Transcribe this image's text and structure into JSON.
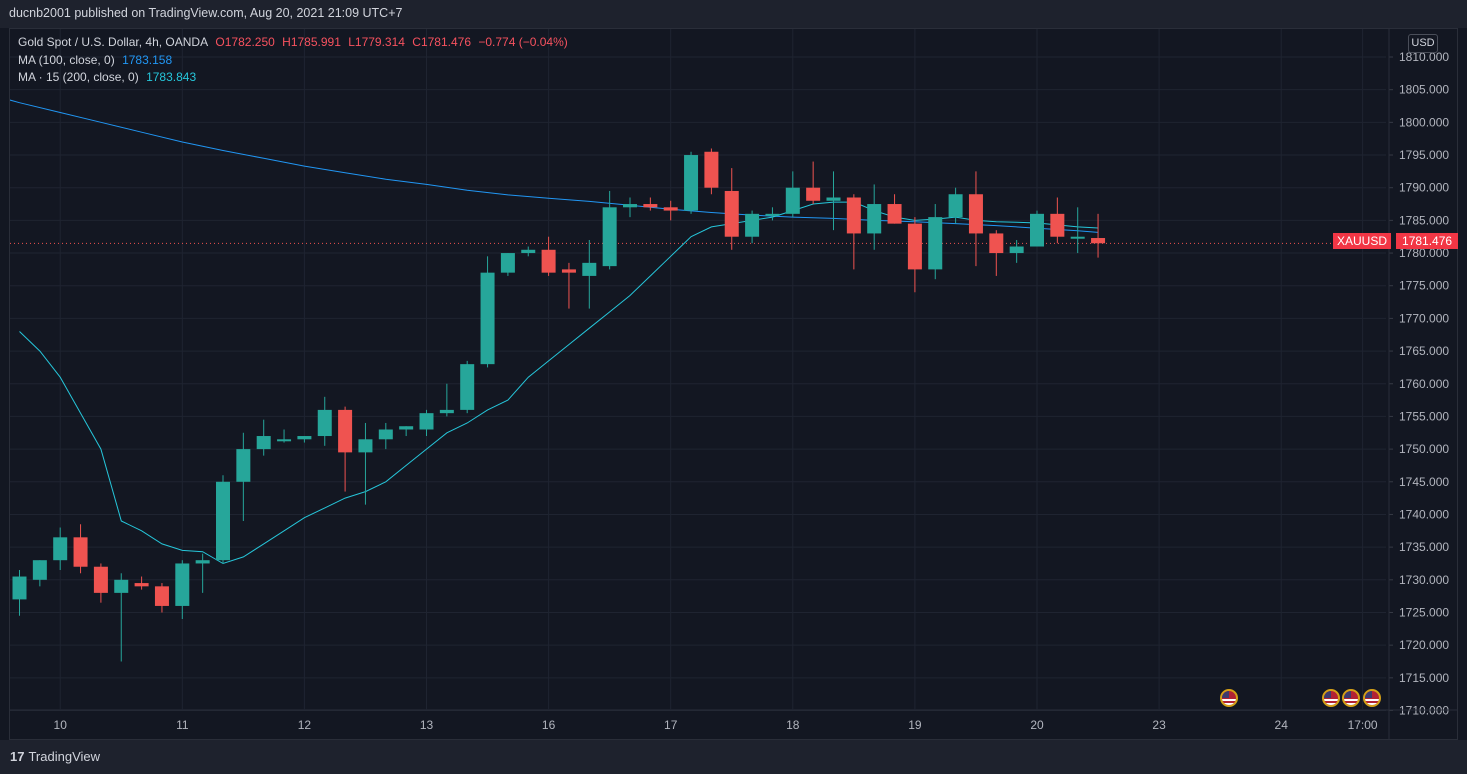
{
  "header": {
    "published": "ducnb2001 published on TradingView.com, Aug 20, 2021 21:09 UTC+7"
  },
  "legend": {
    "symbol": "Gold Spot / U.S. Dollar, 4h, OANDA",
    "open": "O1782.250",
    "high": "H1785.991",
    "low": "L1779.314",
    "close": "C1781.476",
    "change": "−0.774 (−0.04%)",
    "ma100_label": "MA (100, close, 0)",
    "ma100_value": "1783.158",
    "ma15_label": "MA · 15 (200, close, 0)",
    "ma15_value": "1783.843"
  },
  "price_scale": {
    "currency": "USD",
    "last_symbol": "XAUUSD",
    "last_value": "1781.476"
  },
  "footer": {
    "logo_text": "TradingView",
    "logo_mark": "17"
  },
  "colors": {
    "up": "#26a69a",
    "down": "#ef5350",
    "ma100": "#2196f3",
    "ma15": "#26c6da",
    "grid": "#1f2431",
    "text": "#b2b5be"
  },
  "chart_data": {
    "type": "candlestick",
    "title": "Gold Spot / U.S. Dollar, 4h, OANDA",
    "ylim": [
      1707.5,
      1814
    ],
    "yticks": [
      1710,
      1715,
      1720,
      1725,
      1730,
      1735,
      1740,
      1745,
      1750,
      1755,
      1760,
      1765,
      1770,
      1775,
      1780,
      1785,
      1790,
      1795,
      1800,
      1805,
      1810
    ],
    "ytick_labels": [
      "1710.000",
      "1715.000",
      "1720.000",
      "1725.000",
      "1730.000",
      "1735.000",
      "1740.000",
      "1745.000",
      "1750.000",
      "1755.000",
      "1760.000",
      "1765.000",
      "1770.000",
      "1775.000",
      "1780.000",
      "1785.000",
      "1790.000",
      "1795.000",
      "1800.000",
      "1805.000",
      "1810.000"
    ],
    "xticks": [
      {
        "label": "10",
        "bar": 2
      },
      {
        "label": "11",
        "bar": 8
      },
      {
        "label": "12",
        "bar": 14
      },
      {
        "label": "13",
        "bar": 20
      },
      {
        "label": "16",
        "bar": 26
      },
      {
        "label": "17",
        "bar": 32
      },
      {
        "label": "18",
        "bar": 38
      },
      {
        "label": "19",
        "bar": 44
      },
      {
        "label": "20",
        "bar": 50
      },
      {
        "label": "23",
        "bar": 56
      },
      {
        "label": "24",
        "bar": 62
      },
      {
        "label": "17:00",
        "bar": 66
      }
    ],
    "ohlc": [
      [
        1727,
        1731.5,
        1724.5,
        1730.5
      ],
      [
        1730,
        1733,
        1729,
        1733
      ],
      [
        1733,
        1738,
        1731.5,
        1736.5
      ],
      [
        1736.5,
        1738.5,
        1731,
        1732
      ],
      [
        1732,
        1732.5,
        1726.5,
        1728
      ],
      [
        1728,
        1731,
        1717.5,
        1730
      ],
      [
        1729.5,
        1730.5,
        1728.5,
        1729
      ],
      [
        1729,
        1729.5,
        1725,
        1726
      ],
      [
        1726,
        1733,
        1724,
        1732.5
      ],
      [
        1732.5,
        1734,
        1728,
        1733
      ],
      [
        1733,
        1746,
        1732.5,
        1745
      ],
      [
        1745,
        1752.5,
        1739,
        1750
      ],
      [
        1750,
        1754.5,
        1749,
        1752
      ],
      [
        1751.5,
        1753,
        1751,
        1751.5
      ],
      [
        1751.5,
        1752,
        1751,
        1752
      ],
      [
        1752,
        1758,
        1750.5,
        1756
      ],
      [
        1756,
        1756.5,
        1743.5,
        1749.5
      ],
      [
        1749.5,
        1754,
        1741.5,
        1751.5
      ],
      [
        1751.5,
        1754,
        1750,
        1753
      ],
      [
        1753,
        1753.5,
        1752,
        1753.5
      ],
      [
        1753,
        1756,
        1752,
        1755.5
      ],
      [
        1755.5,
        1760,
        1755,
        1756
      ],
      [
        1756,
        1763.5,
        1755.5,
        1763
      ],
      [
        1763,
        1779.5,
        1762.5,
        1777
      ],
      [
        1777,
        1780,
        1776.5,
        1780
      ],
      [
        1780,
        1781,
        1779.5,
        1780.5
      ],
      [
        1780.5,
        1782.5,
        1776.5,
        1777
      ],
      [
        1777.5,
        1778.5,
        1771.5,
        1777
      ],
      [
        1776.5,
        1782,
        1771.5,
        1778.5
      ],
      [
        1778,
        1789.5,
        1777.5,
        1787
      ],
      [
        1787,
        1788.5,
        1785.5,
        1787.5
      ],
      [
        1787.5,
        1788.5,
        1786.5,
        1787
      ],
      [
        1787,
        1788,
        1785,
        1786.5
      ],
      [
        1786.5,
        1795.5,
        1786,
        1795
      ],
      [
        1795.5,
        1796,
        1789,
        1790
      ],
      [
        1789.5,
        1793,
        1780.5,
        1782.5
      ],
      [
        1782.5,
        1786.5,
        1781.5,
        1786
      ],
      [
        1786,
        1787,
        1785,
        1786
      ],
      [
        1786,
        1792.5,
        1785.5,
        1790
      ],
      [
        1790,
        1794,
        1787.5,
        1788
      ],
      [
        1788,
        1792.5,
        1783.5,
        1788.5
      ],
      [
        1788.5,
        1789,
        1777.5,
        1783
      ],
      [
        1783,
        1790.5,
        1780.5,
        1787.5
      ],
      [
        1787.5,
        1789,
        1784.5,
        1784.5
      ],
      [
        1784.5,
        1785.5,
        1774,
        1777.5
      ],
      [
        1777.5,
        1787.5,
        1776,
        1785.5
      ],
      [
        1785.5,
        1790,
        1784.5,
        1789
      ],
      [
        1789,
        1792.5,
        1778,
        1783
      ],
      [
        1783,
        1783.5,
        1776.5,
        1780
      ],
      [
        1780,
        1782,
        1778.5,
        1781
      ],
      [
        1781,
        1786.5,
        1781,
        1786
      ],
      [
        1786,
        1788.5,
        1781.5,
        1782.5
      ],
      [
        1782.5,
        1787,
        1780,
        1782.5
      ],
      [
        1782.3,
        1786,
        1779.3,
        1781.5
      ]
    ],
    "ma15": [
      [
        0,
        1768
      ],
      [
        1,
        1765
      ],
      [
        2,
        1761
      ],
      [
        3,
        1755.5
      ],
      [
        4,
        1750
      ],
      [
        5,
        1739
      ],
      [
        6,
        1737.5
      ],
      [
        7,
        1735.5
      ],
      [
        8,
        1734.5
      ],
      [
        9,
        1734.3
      ],
      [
        10,
        1732.5
      ],
      [
        11,
        1733.5
      ],
      [
        12,
        1735.5
      ],
      [
        13,
        1737.5
      ],
      [
        14,
        1739.5
      ],
      [
        15,
        1741
      ],
      [
        16,
        1742.5
      ],
      [
        17,
        1743.5
      ],
      [
        18,
        1745
      ],
      [
        19,
        1747.5
      ],
      [
        20,
        1750
      ],
      [
        21,
        1752.5
      ],
      [
        22,
        1754
      ],
      [
        23,
        1756
      ],
      [
        24,
        1757.5
      ],
      [
        25,
        1761
      ],
      [
        26,
        1763.5
      ],
      [
        27,
        1766
      ],
      [
        28,
        1768.5
      ],
      [
        29,
        1771
      ],
      [
        30,
        1773.5
      ],
      [
        31,
        1776.5
      ],
      [
        32,
        1779.5
      ],
      [
        33,
        1782.5
      ],
      [
        34,
        1784
      ],
      [
        35,
        1784.5
      ],
      [
        36,
        1785
      ],
      [
        37,
        1785.5
      ],
      [
        38,
        1786.5
      ],
      [
        39,
        1787.5
      ],
      [
        40,
        1787.8
      ],
      [
        41,
        1787.8
      ],
      [
        42,
        1786.5
      ],
      [
        43,
        1785.5
      ],
      [
        44,
        1785
      ],
      [
        45,
        1785.2
      ],
      [
        46,
        1785.5
      ],
      [
        47,
        1785
      ],
      [
        48,
        1784.8
      ],
      [
        49,
        1784.7
      ],
      [
        50,
        1784.6
      ],
      [
        51,
        1784.3
      ],
      [
        52,
        1784
      ],
      [
        53,
        1783.84
      ]
    ],
    "ma100": [
      [
        -1.5,
        1804.3
      ],
      [
        0,
        1803
      ],
      [
        2,
        1801.5
      ],
      [
        4,
        1800
      ],
      [
        6,
        1798.5
      ],
      [
        8,
        1797
      ],
      [
        10,
        1795.7
      ],
      [
        12,
        1794.5
      ],
      [
        14,
        1793.3
      ],
      [
        16,
        1792.3
      ],
      [
        18,
        1791.3
      ],
      [
        20,
        1790.5
      ],
      [
        22,
        1789.6
      ],
      [
        24,
        1788.9
      ],
      [
        26,
        1788.4
      ],
      [
        28,
        1787.9
      ],
      [
        30,
        1787.3
      ],
      [
        32,
        1786.7
      ],
      [
        34,
        1786.2
      ],
      [
        36,
        1785.8
      ],
      [
        38,
        1785.5
      ],
      [
        40,
        1785.3
      ],
      [
        42,
        1785
      ],
      [
        44,
        1784.8
      ],
      [
        46,
        1784.5
      ],
      [
        48,
        1784.2
      ],
      [
        50,
        1783.8
      ],
      [
        52,
        1783.4
      ],
      [
        53,
        1783.16
      ]
    ],
    "last_price": 1781.476,
    "event_flags_bar": [
      59.5,
      64.5,
      65.5,
      66.5
    ]
  }
}
